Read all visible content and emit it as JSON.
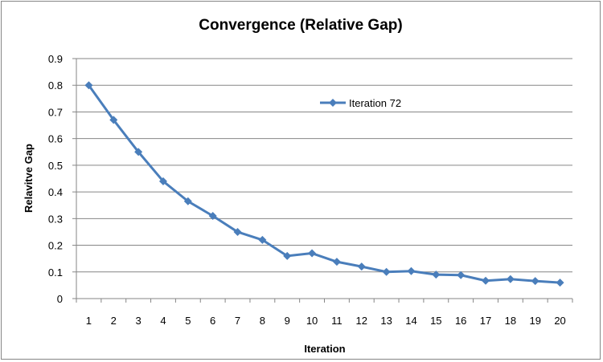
{
  "chart_data": {
    "type": "line",
    "title": "Convergence (Relative Gap)",
    "xlabel": "Iteration",
    "ylabel": "Relavitve Gap",
    "categories": [
      "1",
      "2",
      "3",
      "4",
      "5",
      "6",
      "7",
      "8",
      "9",
      "10",
      "11",
      "12",
      "13",
      "14",
      "15",
      "16",
      "17",
      "18",
      "19",
      "20"
    ],
    "ylim": [
      0,
      0.9
    ],
    "yticks": [
      "0",
      "0.1",
      "0.2",
      "0.3",
      "0.4",
      "0.5",
      "0.6",
      "0.7",
      "0.8",
      "0.9"
    ],
    "grid": true,
    "legend_position": "top-right-inside",
    "series": [
      {
        "name": "Iteration 72",
        "color": "#4a7ebb",
        "marker": "diamond",
        "values": [
          0.8,
          0.67,
          0.55,
          0.44,
          0.365,
          0.31,
          0.25,
          0.22,
          0.16,
          0.17,
          0.138,
          0.12,
          0.1,
          0.103,
          0.09,
          0.088,
          0.067,
          0.073,
          0.066,
          0.06
        ]
      }
    ]
  }
}
